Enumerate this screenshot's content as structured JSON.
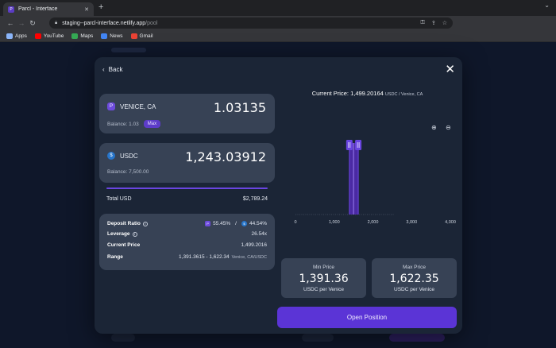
{
  "browser": {
    "tab_title": "Parcl - Interface",
    "url_host": "staging--parcl-interface.netlify.app",
    "url_path": "/pool",
    "bookmarks": [
      {
        "label": "Apps",
        "color": "#8ab4f8"
      },
      {
        "label": "YouTube",
        "color": "#ff0000"
      },
      {
        "label": "Maps",
        "color": "#34a853"
      },
      {
        "label": "News",
        "color": "#4285f4"
      },
      {
        "label": "Gmail",
        "color": "#ea4335"
      }
    ]
  },
  "modal": {
    "back_label": "Back",
    "close_icon": "close-icon",
    "token_in": {
      "name": "VENICE, CA",
      "amount": "1.03135",
      "balance": "Balance: 1.03",
      "max_label": "Max"
    },
    "token_usdc": {
      "name": "USDC",
      "amount": "1,243.03912",
      "balance": "Balance: 7,500.00"
    },
    "total": {
      "label": "Total USD",
      "value": "$2,789.24",
      "progress": 1.0
    },
    "info": {
      "deposit_ratio_label": "Deposit Ratio",
      "deposit_ratio_a": "55.45%",
      "deposit_ratio_sep": "/",
      "deposit_ratio_b": "44.54%",
      "leverage_label": "Leverage",
      "leverage_value": "26.54x",
      "current_price_label": "Current Price",
      "current_price_value": "1,499.2016",
      "range_label": "Range",
      "range_value": "1,391.3615 - 1,622.34",
      "range_unit": "Venice, CA/USDC"
    },
    "current_price": {
      "label": "Current Price:",
      "value": "1,499.20164",
      "unit": "USDC / Venice, CA"
    },
    "chart_data": {
      "type": "bar",
      "x_ticks": [
        "0",
        "1,000",
        "2,000",
        "3,000",
        "4,000"
      ],
      "xlim": [
        0,
        4000
      ],
      "liquidity_range": [
        1391.36,
        1622.35
      ],
      "current_price": 1499.2,
      "colors": {
        "bar": "#4a2aa3",
        "handle": "#6a45e0",
        "line": "#9a7cf0"
      }
    },
    "min_price": {
      "label": "Min Price",
      "value": "1,391.36",
      "unit": "USDC per Venice"
    },
    "max_price": {
      "label": "Max Price",
      "value": "1,622.35",
      "unit": "USDC per Venice"
    },
    "open_position_label": "Open Position"
  }
}
